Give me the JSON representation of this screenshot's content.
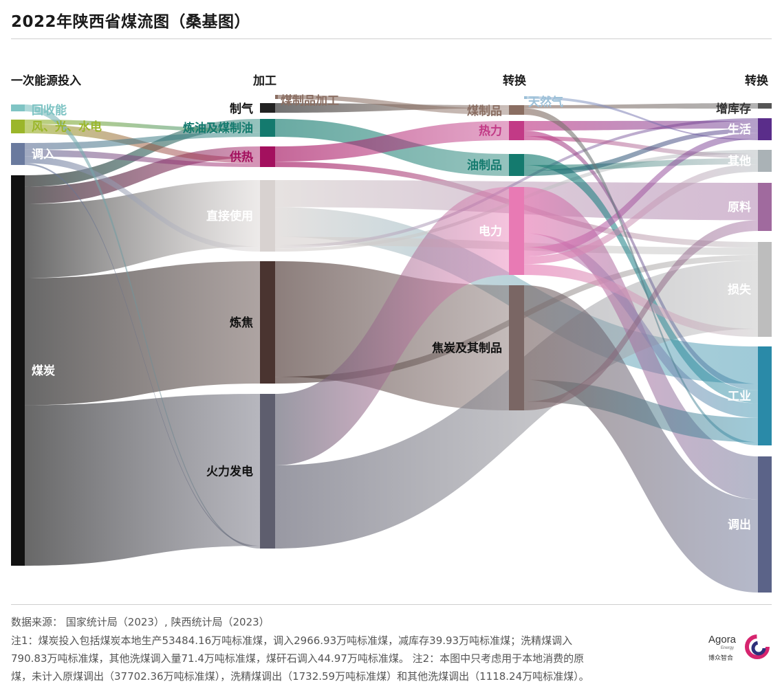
{
  "title": "2022年陕西省煤流图（桑基图）",
  "column_headers": [
    "一次能源投入",
    "加工",
    "转换",
    "转换"
  ],
  "footer": {
    "source": "数据来源： 国家统计局（2023）, 陕西统计局（2023）",
    "note_line1": "注1：煤炭投入包括煤炭本地生产53484.16万吨标准煤，调入2966.93万吨标准煤，减库存39.93万吨标准煤；洗精煤调入",
    "note_line2": "790.83万吨标准煤，其他洗煤调入量71.4万吨标准煤，煤矸石调入44.97万吨标准煤。 注2：本图中只考虑用于本地消费的原",
    "note_line3": "煤，未计入原煤调出（37702.36万吨标准煤），洗精煤调出（1732.59万吨标准煤）和其他洗煤调出（1118.24万吨标准煤）。"
  },
  "logo": {
    "name": "Agora",
    "sub": "Energy",
    "cn": "博众智合",
    "icon": "agora-logo-icon",
    "color": "#d6246e"
  },
  "chart_data": {
    "type": "sankey",
    "title": "2022年陕西省煤流图（桑基图）",
    "unit": "",
    "nodes": [
      {
        "id": "recycle",
        "label": "回收能",
        "column": 0,
        "color": "#7fc4c4"
      },
      {
        "id": "renew",
        "label": "风、光、水电",
        "column": 0,
        "color": "#9bb62a"
      },
      {
        "id": "import",
        "label": "调入",
        "column": 0,
        "color": "#6a7a9e"
      },
      {
        "id": "coal",
        "label": "煤炭",
        "column": 0,
        "color": "#111111"
      },
      {
        "id": "gas_make",
        "label": "制气",
        "column": 1,
        "color": "#222222"
      },
      {
        "id": "coal_oil",
        "label": "炼油及煤制油",
        "column": 1,
        "color": "#147a6e"
      },
      {
        "id": "heat_supply",
        "label": "供热",
        "column": 1,
        "color": "#a3105e"
      },
      {
        "id": "direct",
        "label": "直接使用",
        "column": 1,
        "color": "#d8d2d0"
      },
      {
        "id": "coking",
        "label": "炼焦",
        "column": 1,
        "color": "#4a3430"
      },
      {
        "id": "thermal",
        "label": "火力发电",
        "column": 1,
        "color": "#5e5e6e"
      },
      {
        "id": "coal_prod_proc",
        "label": "煤制品加工",
        "column": 1.5,
        "color": "#8a6e62"
      },
      {
        "id": "natgas",
        "label": "天然气",
        "column": 2.5,
        "color": "#9cc0d8"
      },
      {
        "id": "coal_products",
        "label": "煤制品",
        "column": 2,
        "color": "#8a6e62"
      },
      {
        "id": "heat",
        "label": "热力",
        "column": 2,
        "color": "#c23a86"
      },
      {
        "id": "oil_products",
        "label": "油制品",
        "column": 2,
        "color": "#147a6e"
      },
      {
        "id": "power",
        "label": "电力",
        "column": 2,
        "color": "#e87ab4"
      },
      {
        "id": "coke",
        "label": "焦炭及其制品",
        "column": 2,
        "color": "#7a6664"
      },
      {
        "id": "stock",
        "label": "增库存",
        "column": 3,
        "color": "#555555"
      },
      {
        "id": "residential",
        "label": "生活",
        "column": 3,
        "color": "#5a2d8a"
      },
      {
        "id": "other",
        "label": "其他",
        "column": 3,
        "color": "#aab2b6"
      },
      {
        "id": "feedstock",
        "label": "原料",
        "column": 3,
        "color": "#a06a9e"
      },
      {
        "id": "loss",
        "label": "损失",
        "column": 3,
        "color": "#bdbdbd"
      },
      {
        "id": "industry",
        "label": "工业",
        "column": 3,
        "color": "#2a8aa8"
      },
      {
        "id": "export",
        "label": "调出",
        "column": 3,
        "color": "#5b6388"
      }
    ],
    "links": [
      {
        "source": "coal",
        "target": "coal_oil",
        "value": 16
      },
      {
        "source": "coal",
        "target": "heat_supply",
        "value": 24
      },
      {
        "source": "coal",
        "target": "direct",
        "value": 104
      },
      {
        "source": "coal",
        "target": "coking",
        "value": 178
      },
      {
        "source": "coal",
        "target": "thermal",
        "value": 225
      },
      {
        "source": "renew",
        "target": "coal_oil",
        "value": 6
      },
      {
        "source": "renew",
        "target": "heat_supply",
        "value": 12
      },
      {
        "source": "import",
        "target": "coal_oil",
        "value": 8
      },
      {
        "source": "import",
        "target": "heat_supply",
        "value": 8
      },
      {
        "source": "import",
        "target": "direct",
        "value": 8
      },
      {
        "source": "import",
        "target": "thermal",
        "value": 2
      },
      {
        "source": "recycle",
        "target": "thermal",
        "value": 2
      },
      {
        "source": "gas_make",
        "target": "coal_products",
        "value": 2
      },
      {
        "source": "coal_prod_proc",
        "target": "coal_products",
        "value": 4
      },
      {
        "source": "coal_oil",
        "target": "oil_products",
        "value": 28
      },
      {
        "source": "heat_supply",
        "target": "heat",
        "value": 28
      },
      {
        "source": "heat_supply",
        "target": "loss",
        "value": 10
      },
      {
        "source": "direct",
        "target": "feedstock",
        "value": 42
      },
      {
        "source": "direct",
        "target": "industry",
        "value": 46
      },
      {
        "source": "direct",
        "target": "loss",
        "value": 13
      },
      {
        "source": "direct",
        "target": "residential",
        "value": 5
      },
      {
        "source": "direct",
        "target": "other",
        "value": 5
      },
      {
        "source": "coking",
        "target": "coke",
        "value": 170
      },
      {
        "source": "coking",
        "target": "loss",
        "value": 10
      },
      {
        "source": "thermal",
        "target": "power",
        "value": 104
      },
      {
        "source": "thermal",
        "target": "loss",
        "value": 121
      },
      {
        "source": "heat",
        "target": "residential",
        "value": 14
      },
      {
        "source": "heat",
        "target": "industry",
        "value": 8
      },
      {
        "source": "heat",
        "target": "other",
        "value": 6
      },
      {
        "source": "oil_products",
        "target": "industry",
        "value": 16
      },
      {
        "source": "oil_products",
        "target": "other",
        "value": 8
      },
      {
        "source": "oil_products",
        "target": "residential",
        "value": 8
      },
      {
        "source": "power",
        "target": "export",
        "value": 60
      },
      {
        "source": "power",
        "target": "industry",
        "value": 18
      },
      {
        "source": "power",
        "target": "residential",
        "value": 12
      },
      {
        "source": "power",
        "target": "other",
        "value": 10
      },
      {
        "source": "power",
        "target": "loss",
        "value": 14
      },
      {
        "source": "coke",
        "target": "export",
        "value": 130
      },
      {
        "source": "coke",
        "target": "industry",
        "value": 30
      },
      {
        "source": "coke",
        "target": "feedstock",
        "value": 12
      },
      {
        "source": "coal_products",
        "target": "stock",
        "value": 2
      },
      {
        "source": "coal_products",
        "target": "industry",
        "value": 4
      },
      {
        "source": "natgas",
        "target": "residential",
        "value": 2
      }
    ]
  }
}
